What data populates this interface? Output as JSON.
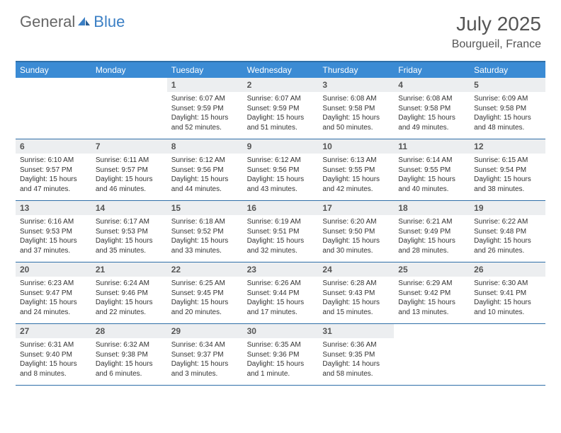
{
  "logo": {
    "text1": "General",
    "text2": "Blue"
  },
  "title": "July 2025",
  "location": "Bourgueil, France",
  "colors": {
    "header_bar": "#3b8bd4",
    "rule": "#2f6fa8",
    "daynum_bg": "#eceef0",
    "text": "#333333",
    "logo_gray": "#666666",
    "logo_blue": "#3b7fc4"
  },
  "dow": [
    "Sunday",
    "Monday",
    "Tuesday",
    "Wednesday",
    "Thursday",
    "Friday",
    "Saturday"
  ],
  "weeks": [
    [
      null,
      null,
      {
        "n": "1",
        "sr": "6:07 AM",
        "ss": "9:59 PM",
        "dl": "15 hours and 52 minutes."
      },
      {
        "n": "2",
        "sr": "6:07 AM",
        "ss": "9:59 PM",
        "dl": "15 hours and 51 minutes."
      },
      {
        "n": "3",
        "sr": "6:08 AM",
        "ss": "9:58 PM",
        "dl": "15 hours and 50 minutes."
      },
      {
        "n": "4",
        "sr": "6:08 AM",
        "ss": "9:58 PM",
        "dl": "15 hours and 49 minutes."
      },
      {
        "n": "5",
        "sr": "6:09 AM",
        "ss": "9:58 PM",
        "dl": "15 hours and 48 minutes."
      }
    ],
    [
      {
        "n": "6",
        "sr": "6:10 AM",
        "ss": "9:57 PM",
        "dl": "15 hours and 47 minutes."
      },
      {
        "n": "7",
        "sr": "6:11 AM",
        "ss": "9:57 PM",
        "dl": "15 hours and 46 minutes."
      },
      {
        "n": "8",
        "sr": "6:12 AM",
        "ss": "9:56 PM",
        "dl": "15 hours and 44 minutes."
      },
      {
        "n": "9",
        "sr": "6:12 AM",
        "ss": "9:56 PM",
        "dl": "15 hours and 43 minutes."
      },
      {
        "n": "10",
        "sr": "6:13 AM",
        "ss": "9:55 PM",
        "dl": "15 hours and 42 minutes."
      },
      {
        "n": "11",
        "sr": "6:14 AM",
        "ss": "9:55 PM",
        "dl": "15 hours and 40 minutes."
      },
      {
        "n": "12",
        "sr": "6:15 AM",
        "ss": "9:54 PM",
        "dl": "15 hours and 38 minutes."
      }
    ],
    [
      {
        "n": "13",
        "sr": "6:16 AM",
        "ss": "9:53 PM",
        "dl": "15 hours and 37 minutes."
      },
      {
        "n": "14",
        "sr": "6:17 AM",
        "ss": "9:53 PM",
        "dl": "15 hours and 35 minutes."
      },
      {
        "n": "15",
        "sr": "6:18 AM",
        "ss": "9:52 PM",
        "dl": "15 hours and 33 minutes."
      },
      {
        "n": "16",
        "sr": "6:19 AM",
        "ss": "9:51 PM",
        "dl": "15 hours and 32 minutes."
      },
      {
        "n": "17",
        "sr": "6:20 AM",
        "ss": "9:50 PM",
        "dl": "15 hours and 30 minutes."
      },
      {
        "n": "18",
        "sr": "6:21 AM",
        "ss": "9:49 PM",
        "dl": "15 hours and 28 minutes."
      },
      {
        "n": "19",
        "sr": "6:22 AM",
        "ss": "9:48 PM",
        "dl": "15 hours and 26 minutes."
      }
    ],
    [
      {
        "n": "20",
        "sr": "6:23 AM",
        "ss": "9:47 PM",
        "dl": "15 hours and 24 minutes."
      },
      {
        "n": "21",
        "sr": "6:24 AM",
        "ss": "9:46 PM",
        "dl": "15 hours and 22 minutes."
      },
      {
        "n": "22",
        "sr": "6:25 AM",
        "ss": "9:45 PM",
        "dl": "15 hours and 20 minutes."
      },
      {
        "n": "23",
        "sr": "6:26 AM",
        "ss": "9:44 PM",
        "dl": "15 hours and 17 minutes."
      },
      {
        "n": "24",
        "sr": "6:28 AM",
        "ss": "9:43 PM",
        "dl": "15 hours and 15 minutes."
      },
      {
        "n": "25",
        "sr": "6:29 AM",
        "ss": "9:42 PM",
        "dl": "15 hours and 13 minutes."
      },
      {
        "n": "26",
        "sr": "6:30 AM",
        "ss": "9:41 PM",
        "dl": "15 hours and 10 minutes."
      }
    ],
    [
      {
        "n": "27",
        "sr": "6:31 AM",
        "ss": "9:40 PM",
        "dl": "15 hours and 8 minutes."
      },
      {
        "n": "28",
        "sr": "6:32 AM",
        "ss": "9:38 PM",
        "dl": "15 hours and 6 minutes."
      },
      {
        "n": "29",
        "sr": "6:34 AM",
        "ss": "9:37 PM",
        "dl": "15 hours and 3 minutes."
      },
      {
        "n": "30",
        "sr": "6:35 AM",
        "ss": "9:36 PM",
        "dl": "15 hours and 1 minute."
      },
      {
        "n": "31",
        "sr": "6:36 AM",
        "ss": "9:35 PM",
        "dl": "14 hours and 58 minutes."
      },
      null,
      null
    ]
  ],
  "labels": {
    "sunrise": "Sunrise: ",
    "sunset": "Sunset: ",
    "daylight": "Daylight: "
  }
}
